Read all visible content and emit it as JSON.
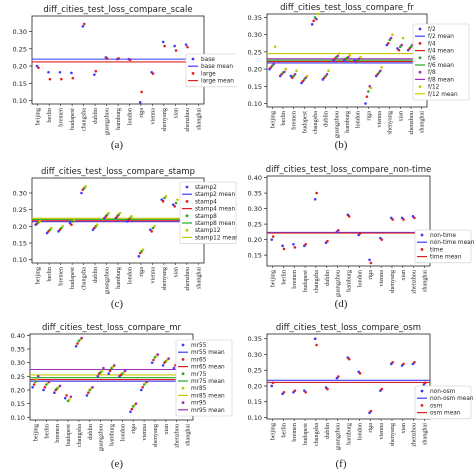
{
  "figure": {
    "sublabels": [
      "(a)",
      "(b)",
      "(c)",
      "(d)",
      "(e)",
      "(f)"
    ]
  },
  "chart_data": [
    {
      "type": "scatter",
      "title": "diff_cities_test_loss_compare_scale",
      "categories": [
        "beijing",
        "berlin",
        "bremen",
        "budapest",
        "changsha",
        "dublin",
        "guangzhou",
        "hamburg",
        "london",
        "riga",
        "vienna",
        "shenyang",
        "xian",
        "zhenzhou",
        "shanghai"
      ],
      "ylim": [
        0.09,
        0.345
      ],
      "yticks": [
        0.1,
        0.15,
        0.2,
        0.25,
        0.3
      ],
      "series": [
        {
          "name": "base",
          "color": "#3b3bff",
          "values": [
            0.2,
            0.182,
            0.182,
            0.18,
            0.315,
            0.175,
            0.225,
            0.22,
            0.22,
            0.095,
            0.182,
            0.27,
            0.258,
            0.262,
            0.205
          ]
        },
        {
          "name": "large",
          "color": "#e02020",
          "values": [
            0.195,
            0.162,
            0.162,
            0.165,
            0.322,
            0.185,
            0.222,
            0.222,
            0.218,
            0.125,
            0.178,
            0.258,
            0.245,
            0.255,
            0.195
          ]
        }
      ],
      "hlines": [
        {
          "name": "base mean",
          "color": "#3b3bff",
          "value": 0.22
        },
        {
          "name": "large mean",
          "color": "#e02020",
          "value": 0.212
        }
      ]
    },
    {
      "type": "scatter",
      "title": "diff_cities_test_loss_compare_fr",
      "categories": [
        "beijing",
        "berlin",
        "bremen",
        "budapest",
        "changsha",
        "dublin",
        "guangzhou",
        "hamburg",
        "london",
        "riga",
        "vienna",
        "shenyang",
        "xian",
        "zhenzhou",
        "shanghai"
      ],
      "ylim": [
        0.09,
        0.36
      ],
      "yticks": [
        0.1,
        0.15,
        0.2,
        0.25,
        0.3,
        0.35
      ],
      "series": [
        {
          "name": "f/2",
          "color": "#3b3bff",
          "values": [
            0.2,
            0.18,
            0.18,
            0.16,
            0.33,
            0.17,
            0.225,
            0.225,
            0.225,
            0.1,
            0.18,
            0.27,
            0.26,
            0.255,
            0.205
          ]
        },
        {
          "name": "f/4",
          "color": "#e02020",
          "values": [
            0.205,
            0.185,
            0.175,
            0.165,
            0.34,
            0.175,
            0.23,
            0.23,
            0.222,
            0.12,
            0.185,
            0.275,
            0.255,
            0.26,
            0.21
          ]
        },
        {
          "name": "f/6",
          "color": "#22aa22",
          "values": [
            0.21,
            0.19,
            0.18,
            0.17,
            0.35,
            0.18,
            0.235,
            0.232,
            0.225,
            0.135,
            0.19,
            0.285,
            0.265,
            0.265,
            0.215
          ]
        },
        {
          "name": "f/8",
          "color": "#9b2dbb",
          "values": [
            0.215,
            0.192,
            0.185,
            0.175,
            0.345,
            0.185,
            0.238,
            0.235,
            0.23,
            0.15,
            0.195,
            0.29,
            0.27,
            0.27,
            0.22
          ]
        },
        {
          "name": "f/12",
          "color": "#c8c800",
          "values": [
            0.265,
            0.2,
            0.195,
            0.18,
            0.36,
            0.195,
            0.245,
            0.24,
            0.235,
            0.145,
            0.205,
            0.3,
            0.29,
            0.28,
            0.23
          ]
        }
      ],
      "hlines": [
        {
          "name": "f/2 mean",
          "color": "#3b3bff",
          "value": 0.218
        },
        {
          "name": "f/4 mean",
          "color": "#e02020",
          "value": 0.222
        },
        {
          "name": "f/6 mean",
          "color": "#22aa22",
          "value": 0.226
        },
        {
          "name": "f/8 mean",
          "color": "#9b2dbb",
          "value": 0.23
        },
        {
          "name": "f/12 mean",
          "color": "#c8c800",
          "value": 0.245
        }
      ]
    },
    {
      "type": "scatter",
      "title": "diff_cities_test_loss_compare_stamp",
      "categories": [
        "beijing",
        "berlin",
        "bremen",
        "budapest",
        "changsha",
        "dublin",
        "guangzhou",
        "hamburg",
        "london",
        "riga",
        "vienna",
        "shenyang",
        "xian",
        "zhenzhou",
        "shanghai"
      ],
      "ylim": [
        0.09,
        0.345
      ],
      "yticks": [
        0.1,
        0.15,
        0.2,
        0.25,
        0.3
      ],
      "series": [
        {
          "name": "stamp2",
          "color": "#3b3bff",
          "values": [
            0.205,
            0.18,
            0.185,
            0.21,
            0.3,
            0.19,
            0.225,
            0.225,
            0.215,
            0.11,
            0.19,
            0.28,
            0.265,
            0.27,
            0.2
          ]
        },
        {
          "name": "stamp4",
          "color": "#e02020",
          "values": [
            0.208,
            0.185,
            0.19,
            0.205,
            0.31,
            0.195,
            0.23,
            0.23,
            0.22,
            0.12,
            0.185,
            0.275,
            0.26,
            0.265,
            0.205
          ]
        },
        {
          "name": "stamp8",
          "color": "#22aa22",
          "values": [
            0.212,
            0.19,
            0.195,
            0.215,
            0.315,
            0.2,
            0.235,
            0.235,
            0.225,
            0.125,
            0.195,
            0.285,
            0.27,
            0.275,
            0.21
          ]
        },
        {
          "name": "stamp12",
          "color": "#c8c800",
          "values": [
            0.215,
            0.195,
            0.2,
            0.22,
            0.32,
            0.205,
            0.24,
            0.24,
            0.23,
            0.13,
            0.2,
            0.29,
            0.28,
            0.28,
            0.215
          ]
        }
      ],
      "hlines": [
        {
          "name": "stamp2 mean",
          "color": "#3b3bff",
          "value": 0.214
        },
        {
          "name": "stamp4 mean",
          "color": "#e02020",
          "value": 0.217
        },
        {
          "name": "stamp8 mean",
          "color": "#22aa22",
          "value": 0.221
        },
        {
          "name": "stamp12 mean",
          "color": "#c8c800",
          "value": 0.224
        }
      ]
    },
    {
      "type": "scatter",
      "title": "diff_cities_test_loss_compare_non-time",
      "categories": [
        "beijing",
        "berlin",
        "bremen",
        "budapest",
        "changsha",
        "dublin",
        "guangzhou",
        "hamburg",
        "london",
        "riga",
        "vienna",
        "shenyang",
        "xian",
        "zhenzhou",
        "shanghai"
      ],
      "ylim": [
        0.115,
        0.405
      ],
      "yticks": [
        0.15,
        0.2,
        0.25,
        0.3,
        0.35,
        0.4
      ],
      "series": [
        {
          "name": "non-time",
          "color": "#3b3bff",
          "values": [
            0.2,
            0.18,
            0.185,
            0.18,
            0.33,
            0.19,
            0.225,
            0.28,
            0.215,
            0.135,
            0.205,
            0.27,
            0.27,
            0.275,
            0.21
          ]
        },
        {
          "name": "time",
          "color": "#e02020",
          "values": [
            0.21,
            0.17,
            0.175,
            0.185,
            0.35,
            0.195,
            0.23,
            0.275,
            0.22,
            0.125,
            0.2,
            0.265,
            0.265,
            0.27,
            0.205
          ]
        }
      ],
      "hlines": [
        {
          "name": "non-time mean",
          "color": "#3b3bff",
          "value": 0.223
        },
        {
          "name": "time mean",
          "color": "#e02020",
          "value": 0.221
        }
      ]
    },
    {
      "type": "scatter",
      "title": "diff_cities_test_loss_compare_mr",
      "categories": [
        "beijing",
        "berlin",
        "bremen",
        "budapest",
        "changsha",
        "dublin",
        "guangzhou",
        "hamburg",
        "london",
        "riga",
        "vienna",
        "shenyang",
        "xian",
        "zhenzhou",
        "shanghai"
      ],
      "ylim": [
        0.09,
        0.405
      ],
      "yticks": [
        0.1,
        0.15,
        0.2,
        0.25,
        0.3,
        0.35,
        0.4
      ],
      "series": [
        {
          "name": "mr55",
          "color": "#3b3bff",
          "values": [
            0.21,
            0.2,
            0.19,
            0.17,
            0.36,
            0.18,
            0.25,
            0.26,
            0.25,
            0.12,
            0.2,
            0.3,
            0.29,
            0.28,
            0.22
          ]
        },
        {
          "name": "mr65",
          "color": "#e02020",
          "values": [
            0.22,
            0.21,
            0.2,
            0.18,
            0.37,
            0.19,
            0.26,
            0.27,
            0.255,
            0.13,
            0.21,
            0.31,
            0.3,
            0.29,
            0.23
          ]
        },
        {
          "name": "mr75",
          "color": "#22aa22",
          "values": [
            0.23,
            0.22,
            0.205,
            0.16,
            0.38,
            0.2,
            0.265,
            0.28,
            0.26,
            0.14,
            0.22,
            0.32,
            0.305,
            0.295,
            0.24
          ]
        },
        {
          "name": "mr85",
          "color": "#c8c800",
          "values": [
            0.24,
            0.225,
            0.21,
            0.165,
            0.385,
            0.205,
            0.27,
            0.285,
            0.265,
            0.145,
            0.225,
            0.325,
            0.31,
            0.3,
            0.245
          ]
        },
        {
          "name": "mr95",
          "color": "#9b2dbb",
          "values": [
            0.25,
            0.23,
            0.215,
            0.175,
            0.39,
            0.21,
            0.28,
            0.29,
            0.27,
            0.15,
            0.23,
            0.33,
            0.315,
            0.305,
            0.25
          ]
        }
      ],
      "hlines": [
        {
          "name": "mr55 mean",
          "color": "#3b3bff",
          "value": 0.232
        },
        {
          "name": "mr65 mean",
          "color": "#e02020",
          "value": 0.238
        },
        {
          "name": "mr75 mean",
          "color": "#22aa22",
          "value": 0.245
        },
        {
          "name": "mr85 mean",
          "color": "#c8c800",
          "value": 0.255
        },
        {
          "name": "mr95 mean",
          "color": "#9b2dbb",
          "value": 0.275
        }
      ]
    },
    {
      "type": "scatter",
      "title": "diff_cities_test_loss_compare_osm",
      "categories": [
        "beijing",
        "berlin",
        "bremen",
        "budapest",
        "changsha",
        "dublin",
        "guangzhou",
        "hamburg",
        "london",
        "riga",
        "vienna",
        "shenyang",
        "xian",
        "zhenzhou",
        "shanghai"
      ],
      "ylim": [
        0.095,
        0.365
      ],
      "yticks": [
        0.1,
        0.15,
        0.2,
        0.25,
        0.3,
        0.35
      ],
      "series": [
        {
          "name": "non-osm",
          "color": "#3b3bff",
          "values": [
            0.2,
            0.175,
            0.18,
            0.185,
            0.35,
            0.195,
            0.225,
            0.29,
            0.245,
            0.115,
            0.185,
            0.27,
            0.265,
            0.27,
            0.205
          ]
        },
        {
          "name": "osm",
          "color": "#e02020",
          "values": [
            0.21,
            0.18,
            0.185,
            0.18,
            0.33,
            0.19,
            0.23,
            0.285,
            0.24,
            0.12,
            0.19,
            0.275,
            0.27,
            0.275,
            0.21
          ]
        }
      ],
      "hlines": [
        {
          "name": "non-osm mean",
          "color": "#3b3bff",
          "value": 0.218
        },
        {
          "name": "osm mean",
          "color": "#e02020",
          "value": 0.211
        }
      ]
    }
  ]
}
